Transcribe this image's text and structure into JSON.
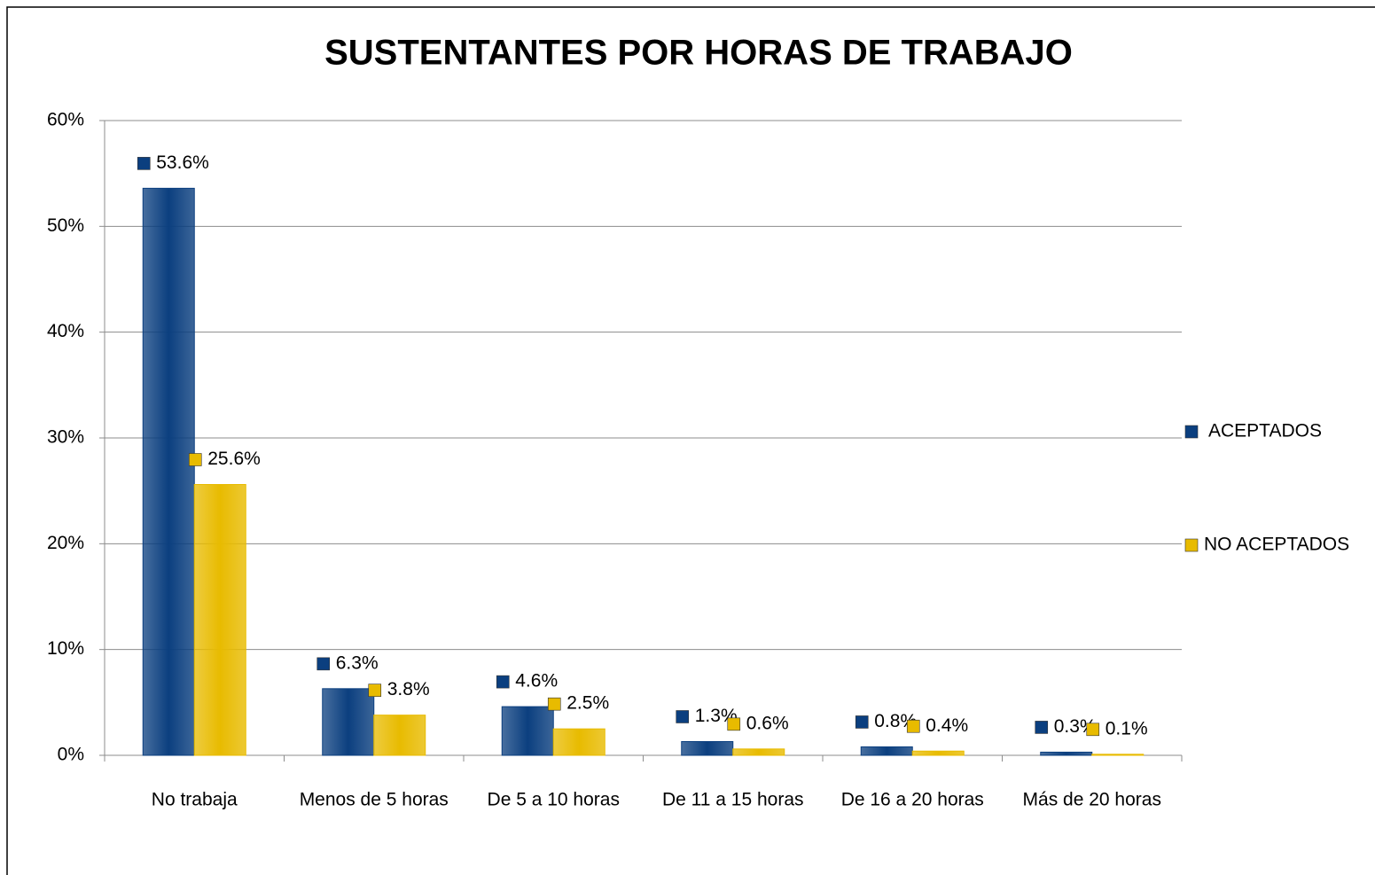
{
  "chart_data": {
    "type": "bar",
    "title": "SUSTENTANTES POR HORAS DE TRABAJO",
    "categories": [
      "No trabaja",
      "Menos de 5 horas",
      "De 5 a 10 horas",
      "De 11 a 15 horas",
      "De 16 a 20 horas",
      "Más de 20 horas"
    ],
    "series": [
      {
        "name": "ACEPTADOS",
        "color": "#0b3f7f",
        "values": [
          53.6,
          6.3,
          4.6,
          1.3,
          0.8,
          0.3
        ],
        "value_labels": [
          "53.6%",
          "6.3%",
          "4.6%",
          "1.3%",
          "0.8%",
          "0.3%"
        ]
      },
      {
        "name": "NO ACEPTADOS",
        "color": "#e8bb00",
        "values": [
          25.6,
          3.8,
          2.5,
          0.6,
          0.4,
          0.1
        ],
        "value_labels": [
          "25.6%",
          "3.8%",
          "2.5%",
          "0.6%",
          "0.4%",
          "0.1%"
        ]
      }
    ],
    "ylim": [
      0,
      60
    ],
    "yticks": [
      {
        "value": 0,
        "label": "0%"
      },
      {
        "value": 10,
        "label": "10%"
      },
      {
        "value": 20,
        "label": "20%"
      },
      {
        "value": 30,
        "label": "30%"
      },
      {
        "value": 40,
        "label": "40%"
      },
      {
        "value": 50,
        "label": "50%"
      },
      {
        "value": 60,
        "label": "60%"
      }
    ],
    "grid": true,
    "legend": "right"
  }
}
